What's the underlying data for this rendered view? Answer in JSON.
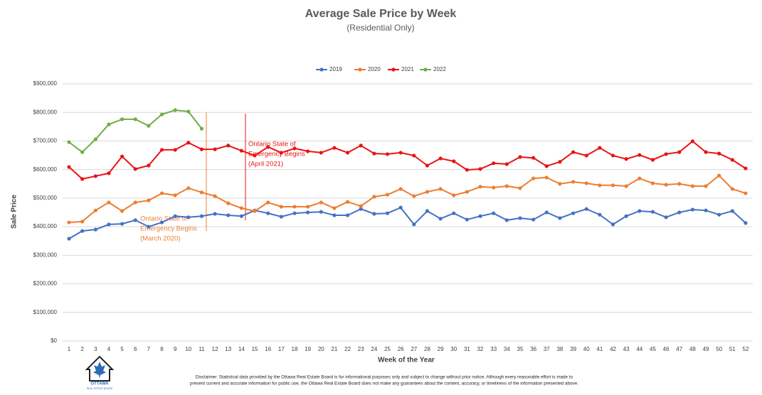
{
  "chart_data": {
    "type": "line",
    "title": "Average Sale Price by Week",
    "subtitle": "(Residential Only)",
    "x_label": "Week of the Year",
    "y_label": "Sale Price",
    "categories": [
      "1",
      "2",
      "3",
      "4",
      "5",
      "6",
      "7",
      "8",
      "9",
      "10",
      "11",
      "12",
      "13",
      "14",
      "15",
      "16",
      "17",
      "18",
      "19",
      "20",
      "21",
      "22",
      "23",
      "24",
      "25",
      "26",
      "27",
      "28",
      "29",
      "30",
      "31",
      "32",
      "33",
      "34",
      "35",
      "36",
      "37",
      "38",
      "39",
      "40",
      "41",
      "42",
      "43",
      "44",
      "45",
      "46",
      "47",
      "48",
      "49",
      "50",
      "51",
      "52"
    ],
    "series": [
      {
        "name": "2019",
        "color": "#4472c4",
        "values": [
          358000,
          385000,
          390000,
          408000,
          410000,
          423000,
          400000,
          415000,
          437000,
          433000,
          437000,
          445000,
          440000,
          437000,
          457000,
          447000,
          435000,
          447000,
          450000,
          452000,
          440000,
          440000,
          462000,
          445000,
          447000,
          467000,
          408000,
          455000,
          428000,
          447000,
          425000,
          437000,
          447000,
          423000,
          430000,
          425000,
          450000,
          430000,
          447000,
          462000,
          442000,
          408000,
          437000,
          455000,
          452000,
          433000,
          450000,
          460000,
          457000,
          442000,
          455000,
          413000
        ]
      },
      {
        "name": "2020",
        "color": "#ed7d31",
        "values": [
          415000,
          418000,
          457000,
          485000,
          455000,
          485000,
          492000,
          517000,
          510000,
          535000,
          520000,
          507000,
          482000,
          465000,
          455000,
          485000,
          470000,
          470000,
          470000,
          485000,
          465000,
          487000,
          472000,
          505000,
          512000,
          532000,
          507000,
          522000,
          532000,
          510000,
          522000,
          540000,
          537000,
          542000,
          535000,
          569000,
          572000,
          550000,
          557000,
          552000,
          545000,
          545000,
          542000,
          569000,
          552000,
          547000,
          550000,
          542000,
          542000,
          579000,
          532000,
          517000
        ]
      },
      {
        "name": "2021",
        "color": "#e81313",
        "values": [
          609000,
          567000,
          577000,
          587000,
          646000,
          602000,
          614000,
          669000,
          669000,
          694000,
          671000,
          671000,
          684000,
          666000,
          649000,
          679000,
          659000,
          674000,
          664000,
          659000,
          676000,
          659000,
          684000,
          656000,
          654000,
          659000,
          649000,
          614000,
          639000,
          629000,
          599000,
          602000,
          622000,
          619000,
          644000,
          641000,
          612000,
          627000,
          661000,
          649000,
          676000,
          649000,
          637000,
          651000,
          634000,
          654000,
          661000,
          699000,
          661000,
          656000,
          634000,
          604000
        ]
      },
      {
        "name": "2022",
        "color": "#70ad47",
        "values": [
          696000,
          661000,
          706000,
          758000,
          776000,
          776000,
          753000,
          793000,
          808000,
          803000,
          743000,
          null,
          null,
          null,
          null,
          null,
          null,
          null,
          null,
          null,
          null,
          null,
          null,
          null,
          null,
          null,
          null,
          null,
          null,
          null,
          null,
          null,
          null,
          null,
          null,
          null,
          null,
          null,
          null,
          null,
          null,
          null,
          null,
          null,
          null,
          null,
          null,
          null,
          null,
          null,
          null,
          null
        ]
      }
    ],
    "ylim": [
      0,
      900000
    ],
    "yticks": [
      {
        "value": 0,
        "label": "$0"
      },
      {
        "value": 100000,
        "label": "$100,000"
      },
      {
        "value": 200000,
        "label": "$200,000"
      },
      {
        "value": 300000,
        "label": "$300,000"
      },
      {
        "value": 400000,
        "label": "$400,000"
      },
      {
        "value": 500000,
        "label": "$500,000"
      },
      {
        "value": 600000,
        "label": "$600,000"
      },
      {
        "value": 700000,
        "label": "$700,000"
      },
      {
        "value": 800000,
        "label": "$800,000"
      },
      {
        "value": 900000,
        "label": "$900,000"
      }
    ],
    "grid": true,
    "legend": "top",
    "annotations": [
      {
        "lines": [
          "Ontario State of",
          "Emergency Begins",
          "(March 2020)"
        ],
        "color": "#ed7d31"
      },
      {
        "lines": [
          "Ontario State of",
          "Emergency Begins",
          "(April 2021)"
        ],
        "color": "#e81313"
      }
    ]
  },
  "footer": {
    "logo": [
      "OTTAWA",
      "REAL ESTATE BOARD"
    ],
    "disclaimer": [
      "Disclaimer: Statistical data provided by the Ottawa Real Estate Board is for informational purposes only and subject to change without prior notice. Although every reasonable effort is made to",
      "present current and accurate information for public use, the Ottawa Real Estate Board does not make any guarantees about the content, accuracy, or timeliness of the information presented above."
    ]
  }
}
